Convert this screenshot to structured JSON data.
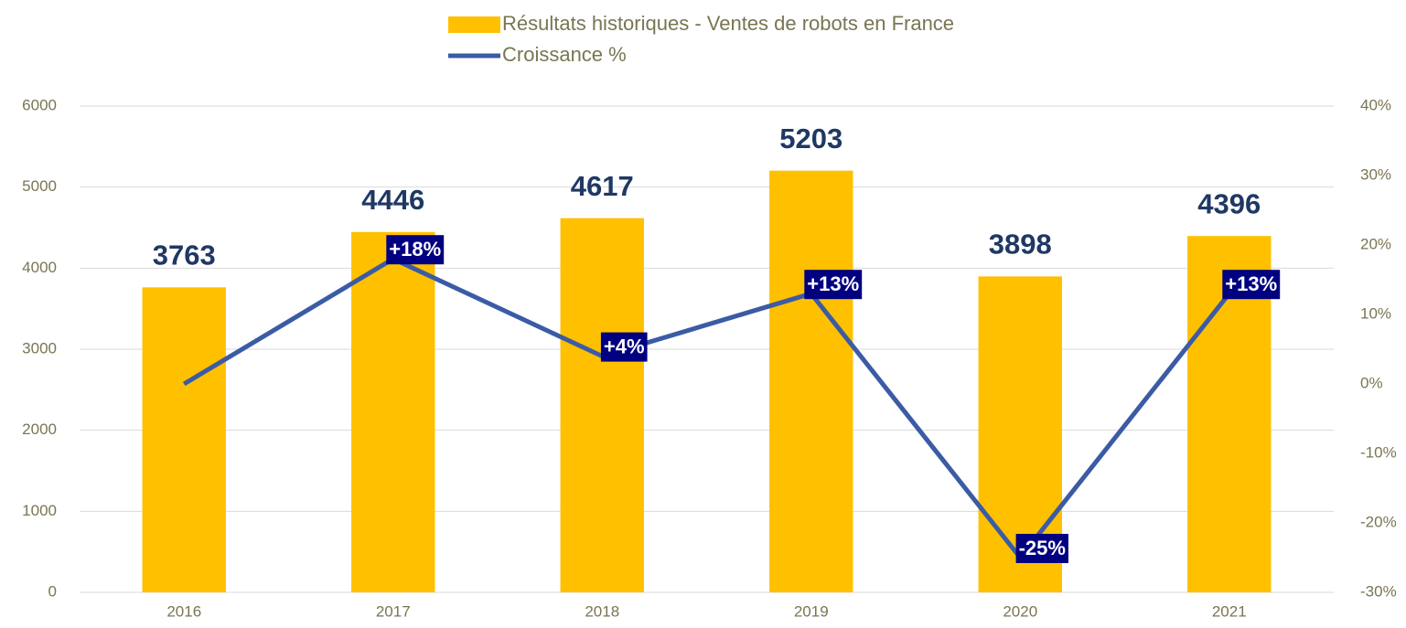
{
  "chart_data": {
    "type": "bar",
    "categories": [
      "2016",
      "2017",
      "2018",
      "2019",
      "2020",
      "2021"
    ],
    "series": [
      {
        "name": "Résultats historiques - Ventes de robots en France",
        "type": "bar",
        "color": "#ffc000",
        "values": [
          3763,
          4446,
          4617,
          5203,
          3898,
          4396
        ]
      },
      {
        "name": "Croissance %",
        "type": "line",
        "axis": "y2",
        "color": "#3b5ba5",
        "values": [
          0,
          18,
          4,
          13,
          -25,
          13
        ],
        "value_labels": [
          null,
          "+18%",
          "+4%",
          "+13%",
          "-25%",
          "+13%"
        ]
      }
    ],
    "ylim": [
      0,
      6000
    ],
    "yticks": [
      0,
      1000,
      2000,
      3000,
      4000,
      5000,
      6000
    ],
    "y2lim": [
      -30,
      40
    ],
    "y2ticks": [
      {
        "value": -30,
        "label": "-30%"
      },
      {
        "value": -20,
        "label": "-20%"
      },
      {
        "value": -10,
        "label": "-10%"
      },
      {
        "value": 0,
        "label": "0%"
      },
      {
        "value": 10,
        "label": "10%"
      },
      {
        "value": 20,
        "label": "20%"
      },
      {
        "value": 30,
        "label": "30%"
      },
      {
        "value": 40,
        "label": "40%"
      }
    ],
    "grid": true,
    "legend": "top"
  }
}
